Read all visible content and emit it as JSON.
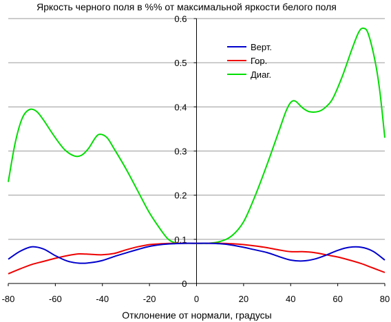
{
  "chart_data": {
    "type": "line",
    "title": "Яркость черного поля в %% от максимальной яркости белого поля",
    "xlabel": "Отклонение от нормали, градусы",
    "ylabel": "",
    "xlim": [
      -80,
      80
    ],
    "ylim": [
      0,
      0.6
    ],
    "x_ticks": [
      "-80",
      "-60",
      "-40",
      "-20",
      "0",
      "20",
      "40",
      "60",
      "80"
    ],
    "y_ticks": [
      "0",
      "0.1",
      "0.2",
      "0.3",
      "0.4",
      "0.5",
      "0.6"
    ],
    "grid": "horizontal",
    "legend_position": "top-right",
    "series": [
      {
        "name": "Верт.",
        "color": "#0000cc",
        "points": [
          [
            -80,
            0.055
          ],
          [
            -75,
            0.073
          ],
          [
            -70,
            0.083
          ],
          [
            -65,
            0.078
          ],
          [
            -60,
            0.063
          ],
          [
            -55,
            0.051
          ],
          [
            -50,
            0.046
          ],
          [
            -45,
            0.047
          ],
          [
            -40,
            0.052
          ],
          [
            -35,
            0.061
          ],
          [
            -30,
            0.069
          ],
          [
            -25,
            0.077
          ],
          [
            -20,
            0.084
          ],
          [
            -15,
            0.088
          ],
          [
            -10,
            0.09
          ],
          [
            -5,
            0.091
          ],
          [
            0,
            0.091
          ],
          [
            5,
            0.091
          ],
          [
            10,
            0.09
          ],
          [
            15,
            0.087
          ],
          [
            20,
            0.082
          ],
          [
            25,
            0.076
          ],
          [
            30,
            0.07
          ],
          [
            35,
            0.061
          ],
          [
            40,
            0.053
          ],
          [
            45,
            0.051
          ],
          [
            50,
            0.055
          ],
          [
            55,
            0.064
          ],
          [
            60,
            0.075
          ],
          [
            65,
            0.082
          ],
          [
            70,
            0.082
          ],
          [
            75,
            0.073
          ],
          [
            80,
            0.053
          ]
        ]
      },
      {
        "name": "Гор.",
        "color": "#ee0000",
        "points": [
          [
            -80,
            0.022
          ],
          [
            -75,
            0.033
          ],
          [
            -70,
            0.043
          ],
          [
            -65,
            0.05
          ],
          [
            -60,
            0.057
          ],
          [
            -55,
            0.063
          ],
          [
            -50,
            0.067
          ],
          [
            -45,
            0.066
          ],
          [
            -40,
            0.065
          ],
          [
            -35,
            0.068
          ],
          [
            -30,
            0.076
          ],
          [
            -25,
            0.083
          ],
          [
            -20,
            0.088
          ],
          [
            -15,
            0.09
          ],
          [
            -10,
            0.091
          ],
          [
            -5,
            0.091
          ],
          [
            0,
            0.091
          ],
          [
            5,
            0.091
          ],
          [
            10,
            0.091
          ],
          [
            15,
            0.09
          ],
          [
            20,
            0.088
          ],
          [
            25,
            0.085
          ],
          [
            30,
            0.081
          ],
          [
            35,
            0.076
          ],
          [
            40,
            0.072
          ],
          [
            45,
            0.072
          ],
          [
            50,
            0.07
          ],
          [
            55,
            0.065
          ],
          [
            60,
            0.06
          ],
          [
            65,
            0.053
          ],
          [
            70,
            0.045
          ],
          [
            75,
            0.035
          ],
          [
            80,
            0.025
          ]
        ]
      },
      {
        "name": "Диаг.",
        "color": "#00dd00",
        "points": [
          [
            -80,
            0.23
          ],
          [
            -77,
            0.32
          ],
          [
            -74,
            0.375
          ],
          [
            -71,
            0.394
          ],
          [
            -68,
            0.39
          ],
          [
            -65,
            0.37
          ],
          [
            -60,
            0.33
          ],
          [
            -56,
            0.303
          ],
          [
            -52,
            0.289
          ],
          [
            -49,
            0.29
          ],
          [
            -46,
            0.305
          ],
          [
            -43,
            0.33
          ],
          [
            -41,
            0.338
          ],
          [
            -38,
            0.33
          ],
          [
            -35,
            0.305
          ],
          [
            -30,
            0.26
          ],
          [
            -25,
            0.21
          ],
          [
            -20,
            0.16
          ],
          [
            -15,
            0.12
          ],
          [
            -12,
            0.1
          ],
          [
            -9,
            0.092
          ],
          [
            -5,
            0.091
          ],
          [
            0,
            0.091
          ],
          [
            5,
            0.091
          ],
          [
            10,
            0.095
          ],
          [
            15,
            0.108
          ],
          [
            20,
            0.14
          ],
          [
            25,
            0.2
          ],
          [
            30,
            0.27
          ],
          [
            35,
            0.345
          ],
          [
            38,
            0.39
          ],
          [
            40,
            0.41
          ],
          [
            42,
            0.413
          ],
          [
            45,
            0.398
          ],
          [
            48,
            0.389
          ],
          [
            52,
            0.39
          ],
          [
            55,
            0.4
          ],
          [
            58,
            0.42
          ],
          [
            62,
            0.47
          ],
          [
            66,
            0.53
          ],
          [
            69,
            0.57
          ],
          [
            71,
            0.578
          ],
          [
            73,
            0.565
          ],
          [
            76,
            0.5
          ],
          [
            78,
            0.43
          ],
          [
            80,
            0.33
          ]
        ]
      }
    ]
  }
}
